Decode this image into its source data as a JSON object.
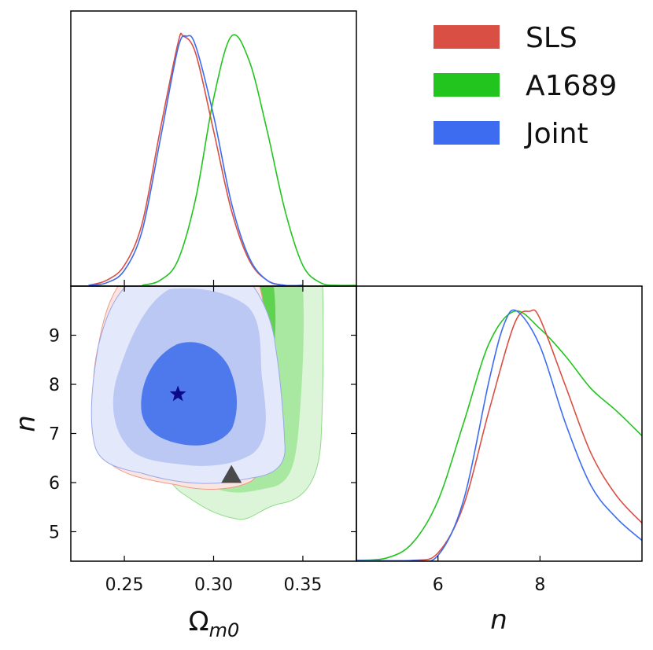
{
  "chart_data": {
    "type": "triangle-corner-plot",
    "parameters": [
      {
        "name": "omega_m0",
        "label": "Ω",
        "label_sub": "m0",
        "range": [
          0.22,
          0.38
        ],
        "ticks": [
          "0.25",
          "0.30",
          "0.35"
        ],
        "tick_values": [
          0.25,
          0.3,
          0.35
        ]
      },
      {
        "name": "n",
        "label": "n",
        "range": [
          4.4,
          10.0
        ],
        "ticks": [
          "5",
          "6",
          "7",
          "8",
          "9"
        ],
        "tick_values": [
          5,
          6,
          7,
          8,
          9
        ],
        "diag_ticks": [
          "6",
          "8"
        ],
        "diag_tick_values": [
          6,
          8
        ]
      }
    ],
    "legend": {
      "placement": "top-right",
      "entries": [
        {
          "label": "SLS",
          "color": "#d94f43"
        },
        {
          "label": "A1689",
          "color": "#22c41e"
        },
        {
          "label": "Joint",
          "color": "#3d6cf0"
        }
      ]
    },
    "series": [
      {
        "name": "SLS",
        "color": "#d94f43",
        "marginal_omega": {
          "x": [
            0.23,
            0.24,
            0.25,
            0.26,
            0.27,
            0.28,
            0.283,
            0.29,
            0.3,
            0.31,
            0.32,
            0.33,
            0.34,
            0.35
          ],
          "y": [
            0.0,
            0.02,
            0.08,
            0.25,
            0.62,
            0.97,
            1.0,
            0.93,
            0.62,
            0.3,
            0.1,
            0.02,
            0.0,
            0.0
          ]
        },
        "marginal_n": {
          "x": [
            4.4,
            5.5,
            6.0,
            6.5,
            7.0,
            7.5,
            7.8,
            8.0,
            8.5,
            9.0,
            9.5,
            10.0
          ],
          "y": [
            0.0,
            0.0,
            0.03,
            0.22,
            0.6,
            0.95,
            1.0,
            0.97,
            0.7,
            0.43,
            0.26,
            0.15
          ]
        }
      },
      {
        "name": "A1689",
        "color": "#22c41e",
        "marginal_omega": {
          "x": [
            0.26,
            0.27,
            0.28,
            0.29,
            0.3,
            0.31,
            0.32,
            0.33,
            0.34,
            0.35,
            0.36,
            0.37,
            0.38
          ],
          "y": [
            0.0,
            0.02,
            0.1,
            0.35,
            0.75,
            1.0,
            0.9,
            0.62,
            0.3,
            0.08,
            0.01,
            0.0,
            0.0
          ]
        },
        "marginal_n": {
          "x": [
            4.4,
            5.0,
            5.5,
            6.0,
            6.5,
            7.0,
            7.5,
            8.0,
            8.5,
            9.0,
            9.5,
            10.0
          ],
          "y": [
            0.0,
            0.01,
            0.07,
            0.24,
            0.55,
            0.87,
            1.0,
            0.93,
            0.82,
            0.69,
            0.6,
            0.5
          ]
        }
      },
      {
        "name": "Joint",
        "color": "#3d6cf0",
        "marginal_omega": {
          "x": [
            0.23,
            0.24,
            0.25,
            0.26,
            0.27,
            0.28,
            0.285,
            0.29,
            0.3,
            0.31,
            0.32,
            0.33,
            0.34,
            0.35
          ],
          "y": [
            0.0,
            0.01,
            0.06,
            0.22,
            0.58,
            0.95,
            1.0,
            0.96,
            0.68,
            0.33,
            0.11,
            0.02,
            0.0,
            0.0
          ]
        },
        "marginal_n": {
          "x": [
            4.4,
            5.5,
            6.0,
            6.5,
            7.0,
            7.3,
            7.55,
            8.0,
            8.5,
            9.0,
            9.5,
            10.0
          ],
          "y": [
            0.0,
            0.0,
            0.02,
            0.24,
            0.72,
            0.95,
            1.0,
            0.86,
            0.55,
            0.3,
            0.17,
            0.08
          ]
        }
      }
    ],
    "markers": [
      {
        "name": "best-fit-star",
        "symbol": "star",
        "x": 0.28,
        "y": 7.8,
        "color": "#0b0b8a"
      },
      {
        "name": "reference-triangle",
        "symbol": "triangle",
        "x": 0.31,
        "y": 6.15,
        "color": "#4a4a4a"
      }
    ]
  }
}
